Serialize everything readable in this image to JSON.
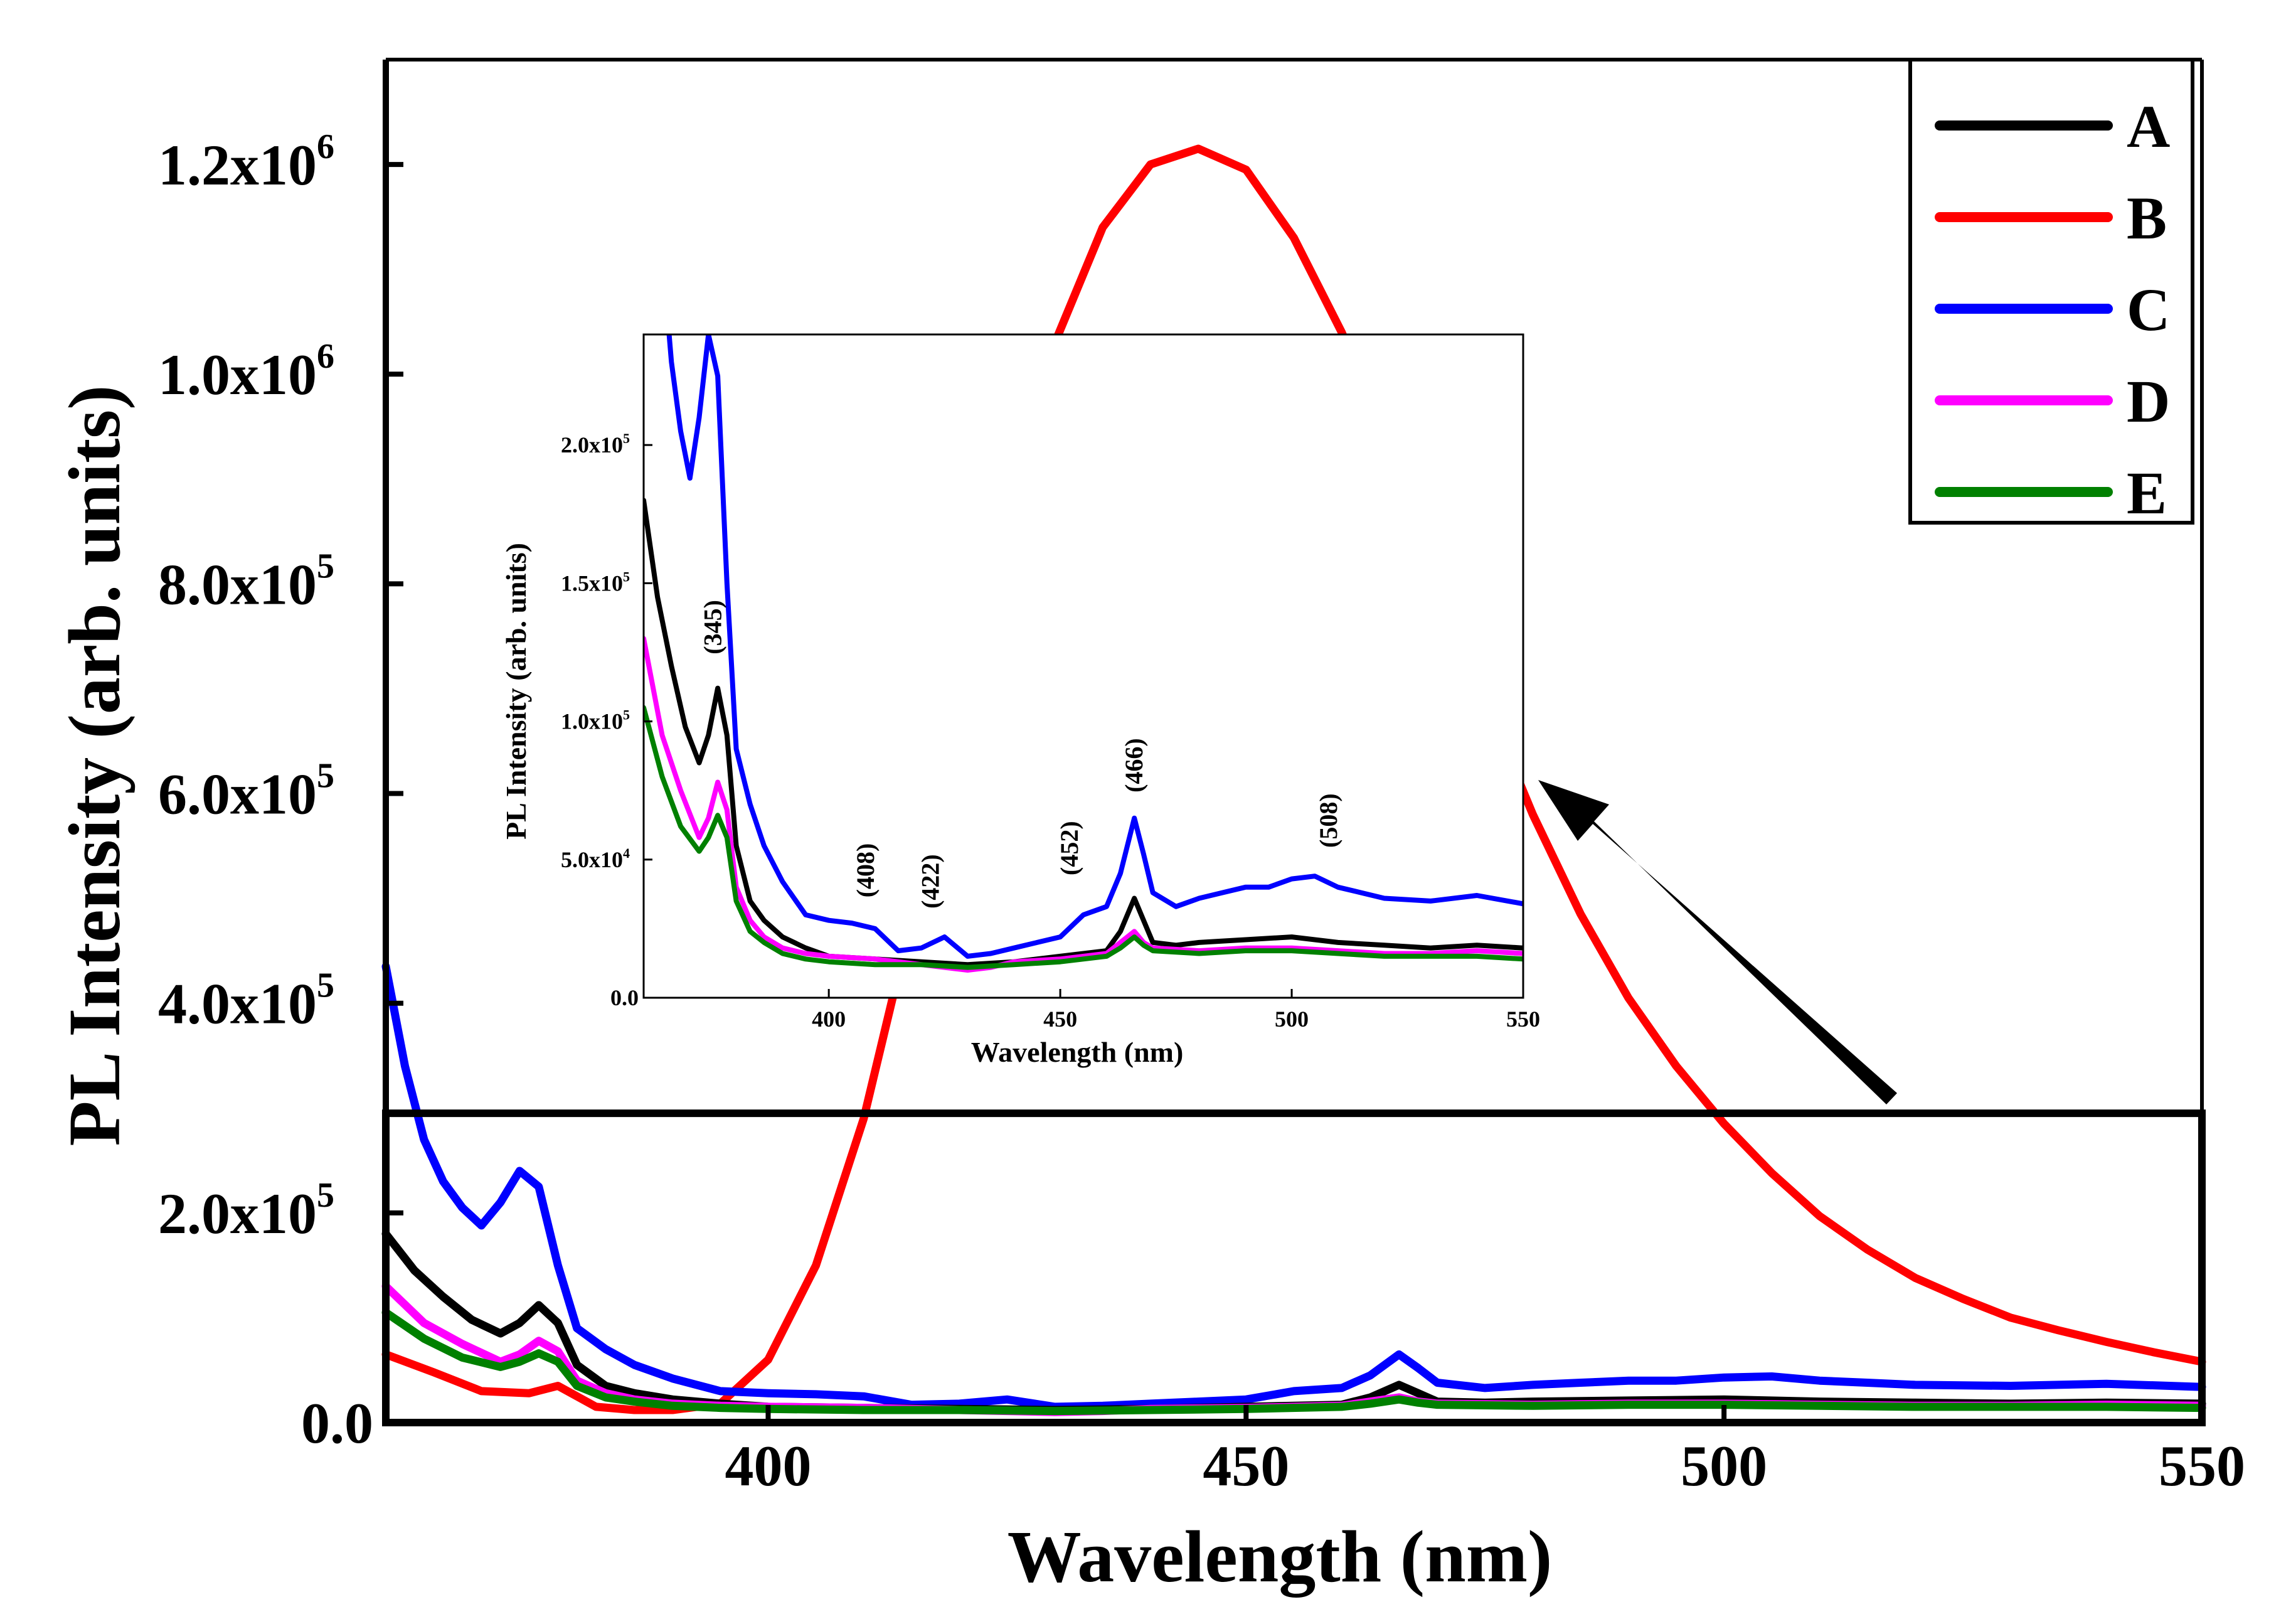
{
  "chart_data": [
    {
      "id": "main",
      "type": "line",
      "xlabel": "Wavelength (nm)",
      "ylabel": "PL Intensity (arb. units)",
      "xlim": [
        360,
        550
      ],
      "ylim": [
        0,
        1300000
      ],
      "xticks": [
        {
          "value": 400,
          "label": "400"
        },
        {
          "value": 450,
          "label": "450"
        },
        {
          "value": 500,
          "label": "500"
        },
        {
          "value": 550,
          "label": "550"
        }
      ],
      "yticks": [
        {
          "value": 0,
          "mant": "0.0",
          "exp": ""
        },
        {
          "value": 200000,
          "mant": "2.0x10",
          "exp": "5"
        },
        {
          "value": 400000,
          "mant": "4.0x10",
          "exp": "5"
        },
        {
          "value": 600000,
          "mant": "6.0x10",
          "exp": "5"
        },
        {
          "value": 800000,
          "mant": "8.0x10",
          "exp": "5"
        },
        {
          "value": 1000000,
          "mant": "1.0x10",
          "exp": "6"
        },
        {
          "value": 1200000,
          "mant": "1.2x10",
          "exp": "6"
        }
      ],
      "zoom_region": {
        "x_from": 360,
        "x_to": 550,
        "y_from": 0,
        "y_to": 295000
      },
      "legend": {
        "position": "top-right",
        "entries": [
          "A",
          "B",
          "C",
          "D",
          "E"
        ]
      },
      "series": [
        {
          "name": "A",
          "color": "#000000",
          "x": [
            360,
            363,
            366,
            369,
            372,
            374,
            376,
            378,
            380,
            383,
            386,
            390,
            395,
            400,
            410,
            420,
            430,
            440,
            450,
            460,
            463,
            466,
            468,
            470,
            475,
            480,
            490,
            500,
            510,
            520,
            530,
            540,
            550
          ],
          "y": [
            180000,
            145000,
            120000,
            98000,
            85000,
            95000,
            112000,
            95000,
            55000,
            35000,
            28000,
            22000,
            18000,
            15000,
            14000,
            13000,
            12000,
            13000,
            15000,
            17000,
            24000,
            36000,
            28000,
            20000,
            19000,
            20000,
            21000,
            22000,
            20000,
            19000,
            18000,
            19000,
            18000
          ]
        },
        {
          "name": "B",
          "color": "#ff0000",
          "x": [
            360,
            365,
            370,
            375,
            378,
            382,
            386,
            390,
            395,
            400,
            405,
            410,
            415,
            420,
            425,
            430,
            435,
            440,
            445,
            450,
            455,
            460,
            465,
            470,
            475,
            480,
            485,
            490,
            495,
            500,
            505,
            510,
            515,
            520,
            525,
            530,
            535,
            540,
            545,
            550
          ],
          "y": [
            65000,
            48000,
            30000,
            28000,
            35000,
            15000,
            12000,
            12000,
            18000,
            60000,
            150000,
            290000,
            480000,
            690000,
            880000,
            1030000,
            1140000,
            1200000,
            1215000,
            1195000,
            1130000,
            1040000,
            930000,
            810000,
            690000,
            580000,
            485000,
            405000,
            340000,
            285000,
            238000,
            197000,
            165000,
            138000,
            118000,
            100000,
            88000,
            77000,
            67000,
            58000
          ]
        },
        {
          "name": "C",
          "color": "#0000ff",
          "x": [
            360,
            362,
            364,
            366,
            368,
            370,
            372,
            374,
            376,
            378,
            380,
            383,
            386,
            390,
            395,
            400,
            405,
            410,
            415,
            420,
            425,
            430,
            435,
            440,
            445,
            450,
            455,
            460,
            463,
            466,
            468,
            470,
            475,
            480,
            485,
            490,
            495,
            500,
            505,
            510,
            515,
            520,
            530,
            540,
            550
          ],
          "y": [
            435000,
            340000,
            270000,
            230000,
            205000,
            188000,
            210000,
            240000,
            225000,
            150000,
            90000,
            70000,
            55000,
            42000,
            30000,
            28000,
            27000,
            25000,
            17000,
            18000,
            22000,
            15000,
            16000,
            18000,
            20000,
            22000,
            30000,
            33000,
            45000,
            65000,
            52000,
            38000,
            33000,
            36000,
            38000,
            40000,
            40000,
            43000,
            44000,
            40000,
            38000,
            36000,
            35000,
            37000,
            34000
          ]
        },
        {
          "name": "D",
          "color": "#ff00ff",
          "x": [
            360,
            364,
            368,
            372,
            374,
            376,
            378,
            380,
            383,
            386,
            390,
            395,
            400,
            410,
            420,
            425,
            430,
            435,
            440,
            450,
            460,
            463,
            466,
            468,
            470,
            480,
            490,
            500,
            510,
            520,
            530,
            540,
            550
          ],
          "y": [
            130000,
            95000,
            75000,
            58000,
            65000,
            78000,
            68000,
            40000,
            28000,
            22000,
            18000,
            16000,
            15000,
            14000,
            12000,
            11000,
            10000,
            11000,
            13000,
            14000,
            16000,
            20000,
            24000,
            20000,
            18000,
            17000,
            18000,
            18000,
            17000,
            16000,
            16000,
            17000,
            16000
          ]
        },
        {
          "name": "E",
          "color": "#008000",
          "x": [
            360,
            364,
            368,
            372,
            374,
            376,
            378,
            380,
            383,
            386,
            390,
            395,
            400,
            410,
            420,
            430,
            440,
            450,
            460,
            463,
            466,
            468,
            470,
            480,
            490,
            500,
            510,
            520,
            530,
            540,
            550
          ],
          "y": [
            105000,
            80000,
            62000,
            53000,
            58000,
            66000,
            58000,
            35000,
            24000,
            20000,
            16000,
            14000,
            13000,
            12000,
            12000,
            11000,
            12000,
            13000,
            15000,
            18000,
            22000,
            19000,
            17000,
            16000,
            17000,
            17000,
            16000,
            15000,
            15000,
            15000,
            14000
          ]
        }
      ]
    },
    {
      "id": "inset",
      "type": "line",
      "xlabel": "Wavelength (nm)",
      "ylabel": "PL Intensity (arb. units)",
      "xlim": [
        360,
        550
      ],
      "ylim": [
        0,
        240000
      ],
      "xticks": [
        {
          "value": 400,
          "label": "400"
        },
        {
          "value": 450,
          "label": "450"
        },
        {
          "value": 500,
          "label": "500"
        },
        {
          "value": 550,
          "label": "550"
        }
      ],
      "yticks": [
        {
          "value": 0,
          "mant": "0.0",
          "exp": ""
        },
        {
          "value": 50000,
          "mant": "5.0x10",
          "exp": "4"
        },
        {
          "value": 100000,
          "mant": "1.0x10",
          "exp": "5"
        },
        {
          "value": 150000,
          "mant": "1.5x10",
          "exp": "5"
        },
        {
          "value": 200000,
          "mant": "2.0x10",
          "exp": "5"
        }
      ],
      "annotations": [
        {
          "label": "(345)",
          "x": 375,
          "y": 122000
        },
        {
          "label": "(408)",
          "x": 408,
          "y": 34000
        },
        {
          "label": "(422)",
          "x": 422,
          "y": 30000
        },
        {
          "label": "(452)",
          "x": 452,
          "y": 42000
        },
        {
          "label": "(466)",
          "x": 466,
          "y": 72000
        },
        {
          "label": "(508)",
          "x": 508,
          "y": 52000
        }
      ],
      "series_from": "main",
      "series_shown": [
        "A",
        "C",
        "D",
        "E"
      ]
    }
  ]
}
